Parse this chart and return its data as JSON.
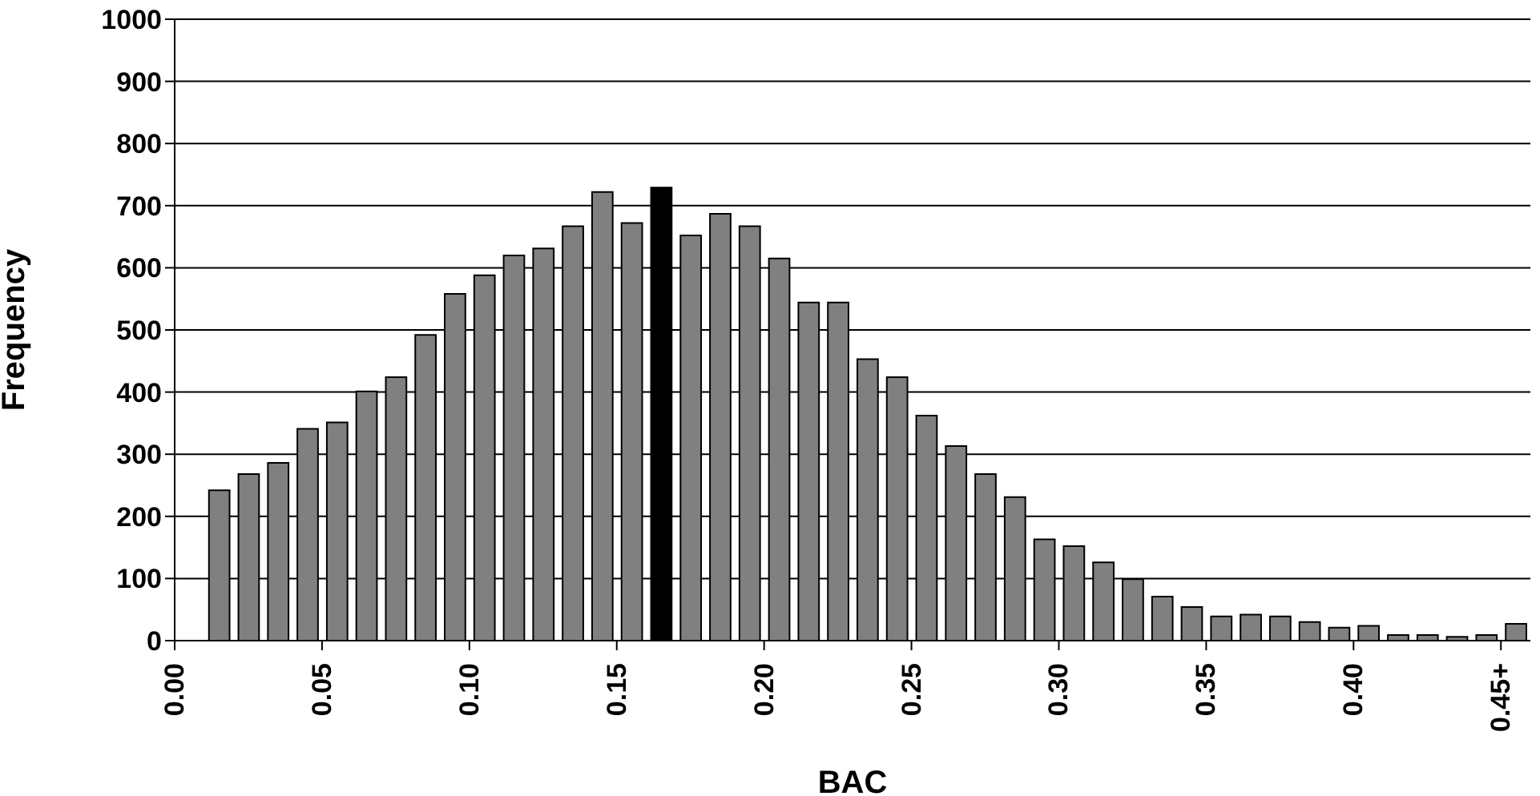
{
  "chart_data": {
    "type": "histogram",
    "xlabel": "BAC",
    "ylabel": "Frequency",
    "bins": [
      0.0,
      0.01,
      0.02,
      0.03,
      0.04,
      0.05,
      0.06,
      0.07,
      0.08,
      0.09,
      0.1,
      0.11,
      0.12,
      0.13,
      0.14,
      0.15,
      0.16,
      0.17,
      0.18,
      0.19,
      0.2,
      0.21,
      0.22,
      0.23,
      0.24,
      0.25,
      0.26,
      0.27,
      0.28,
      0.29,
      0.3,
      0.31,
      0.32,
      0.33,
      0.34,
      0.35,
      0.36,
      0.37,
      0.38,
      0.39,
      0.4,
      0.41,
      0.42,
      0.43,
      0.44,
      0.45,
      0.46
    ],
    "values": [
      0,
      242,
      268,
      286,
      341,
      351,
      401,
      424,
      492,
      558,
      588,
      620,
      631,
      667,
      722,
      672,
      729,
      652,
      687,
      667,
      615,
      544,
      544,
      453,
      424,
      362,
      313,
      268,
      231,
      163,
      152,
      126,
      99,
      71,
      54,
      39,
      42,
      39,
      30,
      21,
      24,
      9,
      9,
      6,
      9,
      27
    ],
    "colors": [
      "#808080",
      "#808080",
      "#808080",
      "#808080",
      "#808080",
      "#808080",
      "#808080",
      "#808080",
      "#808080",
      "#808080",
      "#808080",
      "#808080",
      "#808080",
      "#808080",
      "#808080",
      "#808080",
      "#000000",
      "#808080",
      "#808080",
      "#808080",
      "#808080",
      "#808080",
      "#808080",
      "#808080",
      "#808080",
      "#808080",
      "#808080",
      "#808080",
      "#808080",
      "#808080",
      "#808080",
      "#808080",
      "#808080",
      "#808080",
      "#808080",
      "#808080",
      "#808080",
      "#808080",
      "#808080",
      "#808080",
      "#808080",
      "#808080",
      "#808080",
      "#808080",
      "#808080",
      "#808080"
    ],
    "xlim": [
      0,
      0.46
    ],
    "xticks": [
      {
        "value": 0,
        "label": "0.00"
      },
      {
        "value": 0.05,
        "label": "0.05"
      },
      {
        "value": 0.1,
        "label": "0.10"
      },
      {
        "value": 0.15,
        "label": "0.15"
      },
      {
        "value": 0.2,
        "label": "0.20"
      },
      {
        "value": 0.25,
        "label": "0.25"
      },
      {
        "value": 0.3,
        "label": "0.30"
      },
      {
        "value": 0.35,
        "label": "0.35"
      },
      {
        "value": 0.4,
        "label": "0.40"
      },
      {
        "value": 0.45,
        "label": "0.45+"
      }
    ],
    "ylim": [
      0,
      1000
    ],
    "yticks": [
      0,
      100,
      200,
      300,
      400,
      500,
      600,
      700,
      800,
      900,
      1000
    ],
    "grid": "y"
  }
}
